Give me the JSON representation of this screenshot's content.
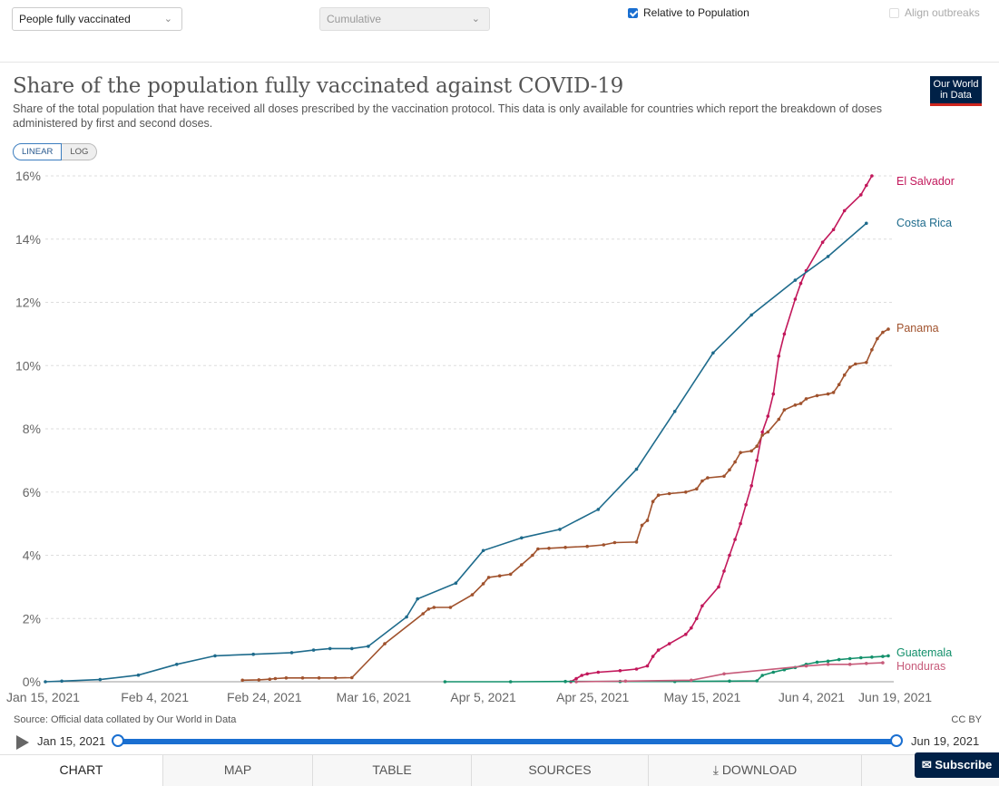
{
  "controls": {
    "metric": "People fully vaccinated",
    "interval": "Cumulative",
    "relative_label": "Relative to Population",
    "relative_checked": true,
    "align_label": "Align outbreaks",
    "align_checked": false
  },
  "header": {
    "title": "Share of the population fully vaccinated against COVID-19",
    "subtitle": "Share of the total population that have received all doses prescribed by the vaccination protocol. This data is only available for countries which report the breakdown of doses administered by first and second doses.",
    "logo": "Our World in Data"
  },
  "scale": {
    "linear": "LINEAR",
    "log": "LOG",
    "active": "linear"
  },
  "footer": {
    "source": "Source: Official data collated by Our World in Data",
    "license": "CC BY"
  },
  "timeline": {
    "start": "Jan 15, 2021",
    "end": "Jun 19, 2021"
  },
  "tabs": [
    "CHART",
    "MAP",
    "TABLE",
    "SOURCES",
    "DOWNLOAD"
  ],
  "subscribe": "Subscribe",
  "chart_data": {
    "type": "line",
    "title": "Share of the population fully vaccinated against COVID-19",
    "xlabel": "",
    "ylabel": "",
    "x_range": [
      "2021-01-15",
      "2021-06-19"
    ],
    "ylim": [
      0,
      16
    ],
    "y_ticks": [
      "0%",
      "2%",
      "4%",
      "6%",
      "8%",
      "10%",
      "12%",
      "14%",
      "16%"
    ],
    "x_ticks": [
      {
        "date": "2021-01-15",
        "label": "Jan 15, 2021"
      },
      {
        "date": "2021-02-04",
        "label": "Feb 4, 2021"
      },
      {
        "date": "2021-02-24",
        "label": "Feb 24, 2021"
      },
      {
        "date": "2021-03-16",
        "label": "Mar 16, 2021"
      },
      {
        "date": "2021-04-05",
        "label": "Apr 5, 2021"
      },
      {
        "date": "2021-04-25",
        "label": "Apr 25, 2021"
      },
      {
        "date": "2021-05-15",
        "label": "May 15, 2021"
      },
      {
        "date": "2021-06-04",
        "label": "Jun 4, 2021"
      },
      {
        "date": "2021-06-19",
        "label": "Jun 19, 2021"
      }
    ],
    "grid": "horizontal dashed",
    "legend": "line-end labels",
    "series": [
      {
        "name": "El Salvador",
        "color": "#c2185b",
        "points": [
          [
            "2021-04-21",
            0
          ],
          [
            "2021-04-22",
            0.1
          ],
          [
            "2021-04-23",
            0.2
          ],
          [
            "2021-04-24",
            0.25
          ],
          [
            "2021-04-26",
            0.3
          ],
          [
            "2021-04-30",
            0.35
          ],
          [
            "2021-05-03",
            0.4
          ],
          [
            "2021-05-05",
            0.5
          ],
          [
            "2021-05-06",
            0.8
          ],
          [
            "2021-05-07",
            1.0
          ],
          [
            "2021-05-09",
            1.2
          ],
          [
            "2021-05-12",
            1.5
          ],
          [
            "2021-05-13",
            1.7
          ],
          [
            "2021-05-14",
            2.0
          ],
          [
            "2021-05-15",
            2.4
          ],
          [
            "2021-05-18",
            3.0
          ],
          [
            "2021-05-19",
            3.5
          ],
          [
            "2021-05-20",
            4.0
          ],
          [
            "2021-05-21",
            4.5
          ],
          [
            "2021-05-22",
            5.0
          ],
          [
            "2021-05-23",
            5.6
          ],
          [
            "2021-05-24",
            6.2
          ],
          [
            "2021-05-25",
            7.0
          ],
          [
            "2021-05-26",
            7.9
          ],
          [
            "2021-05-27",
            8.4
          ],
          [
            "2021-05-28",
            9.1
          ],
          [
            "2021-05-29",
            10.3
          ],
          [
            "2021-05-30",
            11.0
          ],
          [
            "2021-06-01",
            12.1
          ],
          [
            "2021-06-02",
            12.6
          ],
          [
            "2021-06-03",
            13.0
          ],
          [
            "2021-06-06",
            13.9
          ],
          [
            "2021-06-08",
            14.3
          ],
          [
            "2021-06-10",
            14.9
          ],
          [
            "2021-06-13",
            15.4
          ],
          [
            "2021-06-14",
            15.7
          ],
          [
            "2021-06-15",
            16.0
          ]
        ]
      },
      {
        "name": "Costa Rica",
        "color": "#1e6b8c",
        "points": [
          [
            "2021-01-15",
            0
          ],
          [
            "2021-01-18",
            0.02
          ],
          [
            "2021-01-25",
            0.07
          ],
          [
            "2021-02-01",
            0.21
          ],
          [
            "2021-02-08",
            0.55
          ],
          [
            "2021-02-15",
            0.82
          ],
          [
            "2021-02-22",
            0.87
          ],
          [
            "2021-03-01",
            0.92
          ],
          [
            "2021-03-05",
            1.0
          ],
          [
            "2021-03-08",
            1.05
          ],
          [
            "2021-03-12",
            1.05
          ],
          [
            "2021-03-15",
            1.12
          ],
          [
            "2021-03-22",
            2.05
          ],
          [
            "2021-03-24",
            2.62
          ],
          [
            "2021-03-31",
            3.12
          ],
          [
            "2021-04-05",
            4.15
          ],
          [
            "2021-04-12",
            4.55
          ],
          [
            "2021-04-19",
            4.82
          ],
          [
            "2021-04-26",
            5.45
          ],
          [
            "2021-05-03",
            6.72
          ],
          [
            "2021-05-10",
            8.55
          ],
          [
            "2021-05-17",
            10.4
          ],
          [
            "2021-05-24",
            11.6
          ],
          [
            "2021-06-01",
            12.7
          ],
          [
            "2021-06-07",
            13.45
          ],
          [
            "2021-06-14",
            14.5
          ]
        ]
      },
      {
        "name": "Panama",
        "color": "#a0522d",
        "points": [
          [
            "2021-02-20",
            0.05
          ],
          [
            "2021-02-23",
            0.06
          ],
          [
            "2021-02-25",
            0.08
          ],
          [
            "2021-02-26",
            0.1
          ],
          [
            "2021-02-28",
            0.12
          ],
          [
            "2021-03-03",
            0.12
          ],
          [
            "2021-03-06",
            0.12
          ],
          [
            "2021-03-09",
            0.12
          ],
          [
            "2021-03-12",
            0.13
          ],
          [
            "2021-03-18",
            1.2
          ],
          [
            "2021-03-25",
            2.15
          ],
          [
            "2021-03-26",
            2.3
          ],
          [
            "2021-03-27",
            2.35
          ],
          [
            "2021-03-30",
            2.35
          ],
          [
            "2021-04-03",
            2.75
          ],
          [
            "2021-04-05",
            3.1
          ],
          [
            "2021-04-06",
            3.3
          ],
          [
            "2021-04-08",
            3.35
          ],
          [
            "2021-04-10",
            3.4
          ],
          [
            "2021-04-12",
            3.7
          ],
          [
            "2021-04-14",
            4.0
          ],
          [
            "2021-04-15",
            4.2
          ],
          [
            "2021-04-17",
            4.22
          ],
          [
            "2021-04-20",
            4.25
          ],
          [
            "2021-04-24",
            4.28
          ],
          [
            "2021-04-27",
            4.33
          ],
          [
            "2021-04-29",
            4.4
          ],
          [
            "2021-05-03",
            4.42
          ],
          [
            "2021-05-04",
            4.95
          ],
          [
            "2021-05-05",
            5.1
          ],
          [
            "2021-05-06",
            5.7
          ],
          [
            "2021-05-07",
            5.9
          ],
          [
            "2021-05-09",
            5.95
          ],
          [
            "2021-05-12",
            6.0
          ],
          [
            "2021-05-14",
            6.1
          ],
          [
            "2021-05-15",
            6.35
          ],
          [
            "2021-05-16",
            6.45
          ],
          [
            "2021-05-19",
            6.5
          ],
          [
            "2021-05-20",
            6.7
          ],
          [
            "2021-05-21",
            6.95
          ],
          [
            "2021-05-22",
            7.25
          ],
          [
            "2021-05-24",
            7.3
          ],
          [
            "2021-05-25",
            7.45
          ],
          [
            "2021-05-26",
            7.8
          ],
          [
            "2021-05-27",
            7.9
          ],
          [
            "2021-05-29",
            8.3
          ],
          [
            "2021-05-30",
            8.6
          ],
          [
            "2021-06-01",
            8.75
          ],
          [
            "2021-06-02",
            8.8
          ],
          [
            "2021-06-03",
            8.95
          ],
          [
            "2021-06-05",
            9.05
          ],
          [
            "2021-06-07",
            9.1
          ],
          [
            "2021-06-08",
            9.15
          ],
          [
            "2021-06-09",
            9.4
          ],
          [
            "2021-06-10",
            9.7
          ],
          [
            "2021-06-11",
            9.95
          ],
          [
            "2021-06-12",
            10.05
          ],
          [
            "2021-06-14",
            10.1
          ],
          [
            "2021-06-15",
            10.5
          ],
          [
            "2021-06-16",
            10.85
          ],
          [
            "2021-06-17",
            11.05
          ],
          [
            "2021-06-18",
            11.15
          ]
        ]
      },
      {
        "name": "Guatemala",
        "color": "#13906b",
        "points": [
          [
            "2021-03-29",
            0
          ],
          [
            "2021-04-10",
            0
          ],
          [
            "2021-04-20",
            0.01
          ],
          [
            "2021-04-30",
            0.01
          ],
          [
            "2021-05-10",
            0.01
          ],
          [
            "2021-05-20",
            0.02
          ],
          [
            "2021-05-25",
            0.03
          ],
          [
            "2021-05-26",
            0.2
          ],
          [
            "2021-05-28",
            0.3
          ],
          [
            "2021-05-30",
            0.38
          ],
          [
            "2021-06-01",
            0.45
          ],
          [
            "2021-06-03",
            0.55
          ],
          [
            "2021-06-05",
            0.62
          ],
          [
            "2021-06-07",
            0.65
          ],
          [
            "2021-06-09",
            0.7
          ],
          [
            "2021-06-11",
            0.73
          ],
          [
            "2021-06-13",
            0.76
          ],
          [
            "2021-06-15",
            0.78
          ],
          [
            "2021-06-17",
            0.8
          ],
          [
            "2021-06-18",
            0.82
          ]
        ]
      },
      {
        "name": "Honduras",
        "color": "#c75b7a",
        "points": [
          [
            "2021-04-22",
            0
          ],
          [
            "2021-05-01",
            0.02
          ],
          [
            "2021-05-13",
            0.05
          ],
          [
            "2021-05-19",
            0.25
          ],
          [
            "2021-06-03",
            0.5
          ],
          [
            "2021-06-07",
            0.55
          ],
          [
            "2021-06-11",
            0.55
          ],
          [
            "2021-06-14",
            0.58
          ],
          [
            "2021-06-17",
            0.6
          ]
        ]
      }
    ]
  }
}
